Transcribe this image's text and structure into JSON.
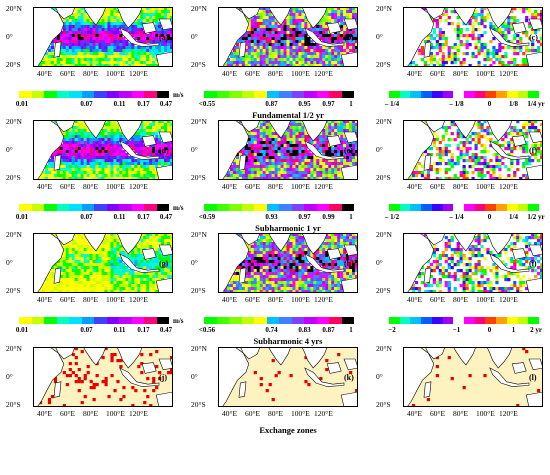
{
  "axis": {
    "lat_labels": [
      "20°N",
      "0°",
      "20°S"
    ],
    "lon_labels": [
      "40°E",
      "60°E",
      "80°E",
      "100°E",
      "120°E"
    ]
  },
  "rows": [
    {
      "title": "Fundamental 1/2 yr",
      "panels": [
        {
          "label": "(a)",
          "style": "magnitude-strong"
        },
        {
          "label": "(b)",
          "style": "magnitude-mixed"
        },
        {
          "label": "(c)",
          "style": "phase-sparse"
        }
      ],
      "colorbars": [
        {
          "ticks": [
            "0.01",
            "0.07",
            "0.11",
            "0.17",
            "0.47"
          ],
          "unit": "m/s",
          "type": "mag"
        },
        {
          "ticks": [
            "<0.55",
            "0.87",
            "0.95",
            "0.97",
            "1"
          ],
          "unit": "",
          "type": "coh"
        },
        {
          "ticks": [
            "– 1/4",
            "– 1/8",
            "0",
            "1/8",
            "1/4 yr"
          ],
          "unit": "",
          "type": "phase"
        }
      ]
    },
    {
      "title": "Subharmonic 1 yr",
      "panels": [
        {
          "label": "(d)",
          "style": "magnitude-strong"
        },
        {
          "label": "(e)",
          "style": "magnitude-mixed"
        },
        {
          "label": "(f)",
          "style": "phase-sparse"
        }
      ],
      "colorbars": [
        {
          "ticks": [
            "0.01",
            "0.07",
            "0.11",
            "0.17",
            "0.47"
          ],
          "unit": "m/s",
          "type": "mag"
        },
        {
          "ticks": [
            "<0.59",
            "0.93",
            "0.97",
            "0.99",
            "1"
          ],
          "unit": "",
          "type": "coh"
        },
        {
          "ticks": [
            "– 1/2",
            "– 1/4",
            "0",
            "1/4",
            "1/2 yr"
          ],
          "unit": "",
          "type": "phase"
        }
      ]
    },
    {
      "title": "Subharmonic 4 yrs",
      "panels": [
        {
          "label": "(g)",
          "style": "magnitude-weak"
        },
        {
          "label": "(h)",
          "style": "magnitude-mixed"
        },
        {
          "label": "(i)",
          "style": "phase-sparse"
        }
      ],
      "colorbars": [
        {
          "ticks": [
            "0.01",
            "0.07",
            "0.11",
            "0.17",
            "0.47"
          ],
          "unit": "m/s",
          "type": "mag"
        },
        {
          "ticks": [
            "<0.56",
            "0.74",
            "0.83",
            "0.87",
            "1"
          ],
          "unit": "",
          "type": "coh"
        },
        {
          "ticks": [
            "−2",
            "−1",
            "0",
            "1",
            "2 yr"
          ],
          "unit": "",
          "type": "phase"
        }
      ]
    },
    {
      "title": "Exchange zones",
      "panels": [
        {
          "label": "(j)",
          "style": "exchange-many"
        },
        {
          "label": "(k)",
          "style": "exchange-few"
        },
        {
          "label": "(l)",
          "style": "exchange-few"
        }
      ],
      "colorbars": []
    }
  ],
  "colors": {
    "mag": [
      "#ffff00",
      "#c8ff00",
      "#00ff00",
      "#00ffc0",
      "#00e0ff",
      "#00a0ff",
      "#4040ff",
      "#8000ff",
      "#c000ff",
      "#ff00ff",
      "#ff0080",
      "#000000"
    ],
    "coh": [
      "#00ff00",
      "#40ff00",
      "#80ff00",
      "#c0ff00",
      "#ffff00",
      "#00c0ff",
      "#4080ff",
      "#8040ff",
      "#c000ff",
      "#ff00ff",
      "#ff0060",
      "#000000"
    ],
    "phase": [
      "#00ff00",
      "#00ffc0",
      "#00c0ff",
      "#0060ff",
      "#4000ff",
      "#a000ff",
      "#ffffff",
      "#ff00ff",
      "#ff0080",
      "#ff4000",
      "#ffa000",
      "#ffff00",
      "#c0ff00",
      "#00ff00"
    ],
    "exchange_bg": "#fdf3c0",
    "exchange_mark": "#e60000",
    "land": "#ffffff",
    "coast": "#000000"
  }
}
